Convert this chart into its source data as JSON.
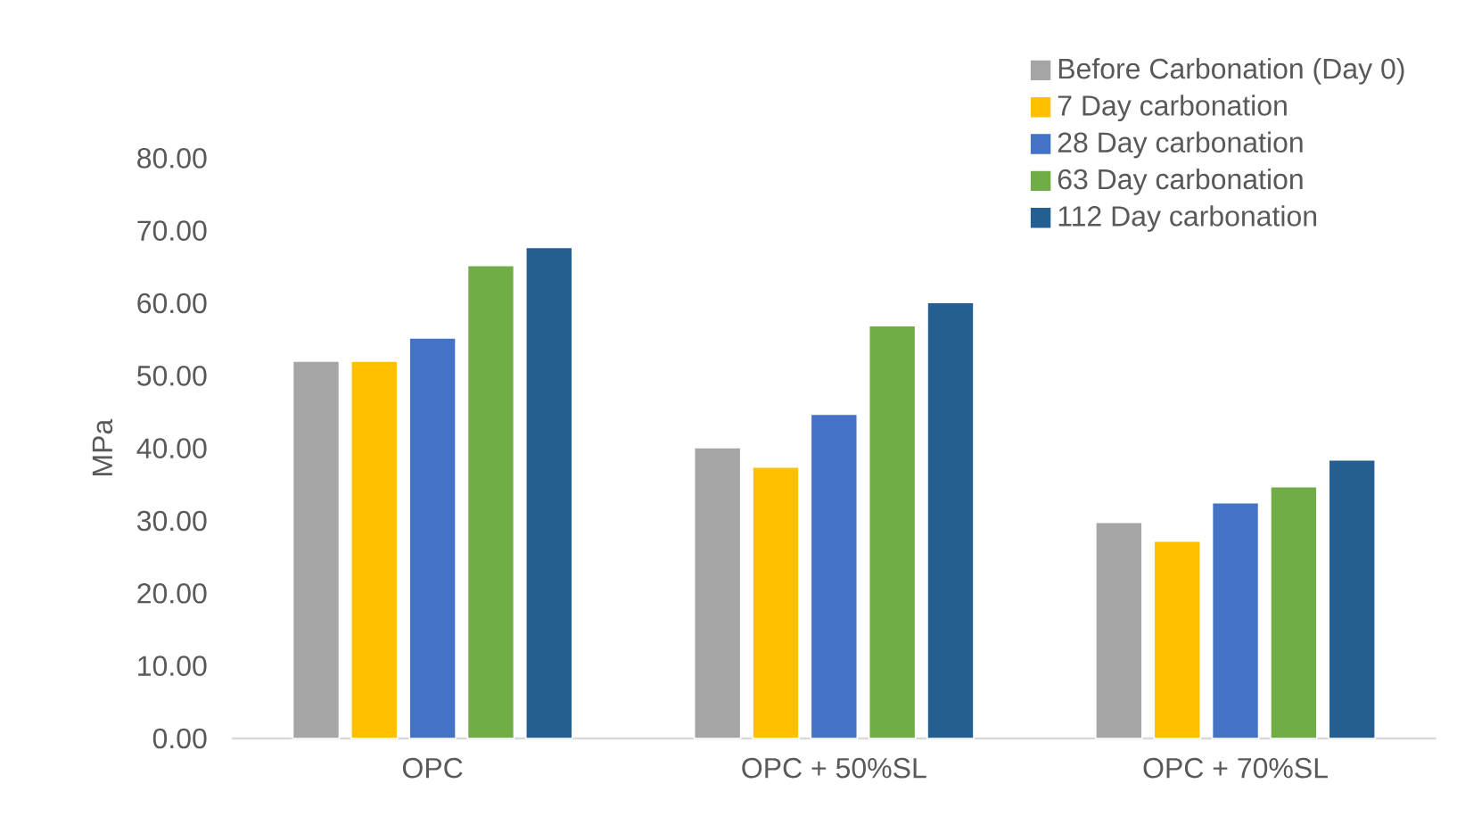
{
  "chart_data": {
    "type": "bar",
    "ylabel": "MPa",
    "categories": [
      "OPC",
      "OPC + 50%SL",
      "OPC + 70%SL"
    ],
    "series": [
      {
        "name": "Before Carbonation (Day 0)",
        "color": "#a5a5a5",
        "values": [
          52.0,
          40.1,
          29.8
        ]
      },
      {
        "name": "7 Day carbonation",
        "color": "#ffc000",
        "values": [
          52.0,
          37.4,
          27.2
        ]
      },
      {
        "name": "28 Day carbonation",
        "color": "#4472c4",
        "values": [
          55.2,
          44.7,
          32.5
        ]
      },
      {
        "name": "63 Day carbonation",
        "color": "#70ad47",
        "values": [
          65.2,
          56.9,
          34.7
        ]
      },
      {
        "name": "112 Day carbonation",
        "color": "#255e91",
        "values": [
          67.7,
          60.1,
          38.4
        ]
      }
    ],
    "ylim": [
      0,
      80
    ],
    "yticks": [
      {
        "value": 0,
        "label": "0.00"
      },
      {
        "value": 10,
        "label": "10.00"
      },
      {
        "value": 20,
        "label": "20.00"
      },
      {
        "value": 30,
        "label": "30.00"
      },
      {
        "value": 40,
        "label": "40.00"
      },
      {
        "value": 50,
        "label": "50.00"
      },
      {
        "value": 60,
        "label": "60.00"
      },
      {
        "value": 70,
        "label": "70.00"
      },
      {
        "value": 80,
        "label": "80.00"
      }
    ],
    "grid": false,
    "legend": "top right"
  }
}
